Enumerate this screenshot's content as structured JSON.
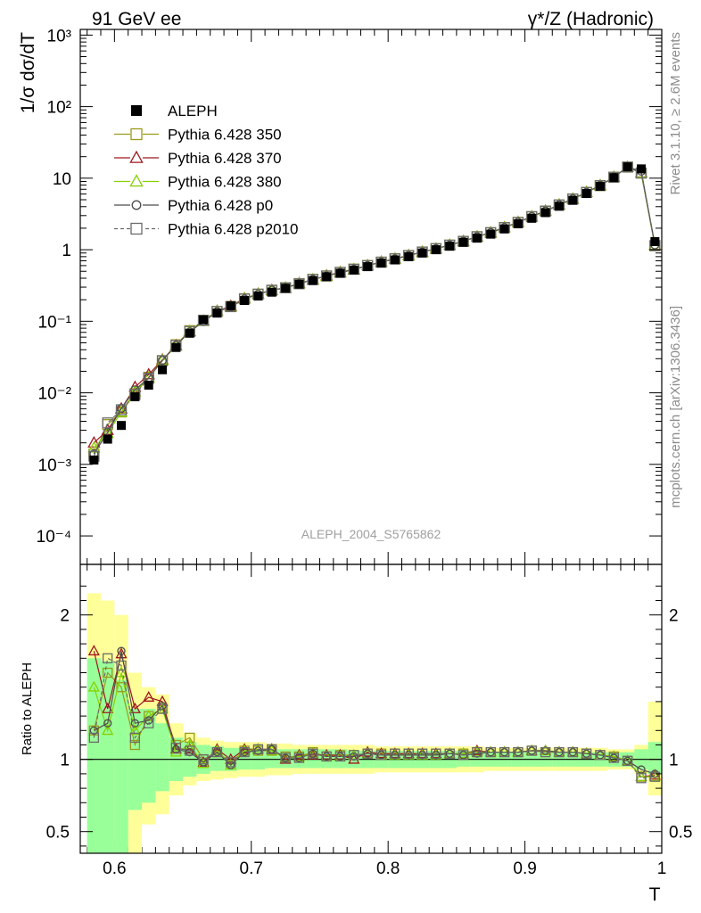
{
  "header": {
    "left": "91 GeV ee",
    "right": "γ*/Z (Hadronic)"
  },
  "side_text": {
    "rivet": "Rivet 3.1.10, ≥ 2.6M events",
    "mcplots": "mcplots.cern.ch [arXiv:1306.3436]"
  },
  "analysis_tag": "ALEPH_2004_S5765862",
  "colors": {
    "aleph": "#000000",
    "p350": "#9a9a1c",
    "p370": "#a0161e",
    "p380": "#86d000",
    "p0": "#4d4d4d",
    "p2010": "#6b6b6b",
    "band_inner": "#99ff99",
    "band_outer": "#ffff99"
  },
  "legend": [
    {
      "label": "ALEPH",
      "marker": "filled-square"
    },
    {
      "label": "Pythia 6.428 350",
      "marker": "open-square"
    },
    {
      "label": "Pythia 6.428 370",
      "marker": "open-triangle"
    },
    {
      "label": "Pythia 6.428 380",
      "marker": "open-triangle"
    },
    {
      "label": "Pythia 6.428 p0",
      "marker": "open-circle"
    },
    {
      "label": "Pythia 6.428 p2010",
      "marker": "open-square-dashed"
    }
  ],
  "chart_data": {
    "type": "line",
    "x": [
      0.585,
      0.595,
      0.605,
      0.615,
      0.625,
      0.635,
      0.645,
      0.655,
      0.665,
      0.675,
      0.685,
      0.695,
      0.705,
      0.715,
      0.725,
      0.735,
      0.745,
      0.755,
      0.765,
      0.775,
      0.785,
      0.795,
      0.805,
      0.815,
      0.825,
      0.835,
      0.845,
      0.855,
      0.865,
      0.875,
      0.885,
      0.895,
      0.905,
      0.915,
      0.925,
      0.935,
      0.945,
      0.955,
      0.965,
      0.975,
      0.985,
      0.995
    ],
    "xlabel": "T",
    "xlim": [
      0.575,
      1.0
    ],
    "xticks": [
      "0.6",
      "0.7",
      "0.8",
      "0.9",
      "1"
    ],
    "top_panel": {
      "ylabel": "1/σ  dσ/dT",
      "yscale": "log",
      "ylim": [
        4e-05,
        1200
      ],
      "yticks": [
        "10⁻⁴",
        "10⁻³",
        "10⁻²",
        "10⁻¹",
        "1",
        "10",
        "10²",
        "10³"
      ],
      "series": [
        {
          "name": "ALEPH",
          "values": [
            0.00115,
            0.00225,
            0.0035,
            0.0088,
            0.0128,
            0.021,
            0.043,
            0.068,
            0.105,
            0.13,
            0.165,
            0.195,
            0.225,
            0.255,
            0.29,
            0.33,
            0.37,
            0.42,
            0.47,
            0.52,
            0.58,
            0.65,
            0.72,
            0.8,
            0.9,
            1.0,
            1.12,
            1.27,
            1.45,
            1.65,
            1.95,
            2.3,
            2.75,
            3.3,
            4.05,
            4.9,
            6.1,
            7.7,
            10.2,
            14.4,
            13.5,
            1.3
          ]
        },
        {
          "name": "Pythia 6.428 350",
          "values": [
            0.0014,
            0.0036,
            0.0054,
            0.0097,
            0.0165,
            0.028,
            0.047,
            0.074,
            0.103,
            0.137,
            0.161,
            0.206,
            0.238,
            0.27,
            0.295,
            0.336,
            0.386,
            0.43,
            0.483,
            0.537,
            0.601,
            0.672,
            0.748,
            0.83,
            0.93,
            1.035,
            1.16,
            1.31,
            1.52,
            1.73,
            2.04,
            2.41,
            2.9,
            3.46,
            4.22,
            5.12,
            6.32,
            7.87,
            10.32,
            14.28,
            11.8,
            1.14
          ]
        },
        {
          "name": "Pythia 6.428 370",
          "values": [
            0.002,
            0.003,
            0.006,
            0.012,
            0.018,
            0.029,
            0.046,
            0.072,
            0.101,
            0.139,
            0.163,
            0.209,
            0.241,
            0.273,
            0.292,
            0.339,
            0.378,
            0.435,
            0.483,
            0.524,
            0.604,
            0.674,
            0.748,
            0.835,
            0.927,
            1.034,
            1.164,
            1.316,
            1.523,
            1.736,
            2.047,
            2.426,
            2.91,
            3.49,
            4.25,
            5.145,
            6.356,
            7.93,
            10.365,
            14.3,
            11.9,
            1.16
          ]
        },
        {
          "name": "Pythia 6.428 380",
          "values": [
            0.0017,
            0.0027,
            0.0054,
            0.0104,
            0.0163,
            0.0285,
            0.045,
            0.073,
            0.1,
            0.138,
            0.158,
            0.207,
            0.24,
            0.271,
            0.294,
            0.335,
            0.384,
            0.428,
            0.48,
            0.535,
            0.6,
            0.67,
            0.744,
            0.828,
            0.928,
            1.033,
            1.163,
            1.314,
            1.518,
            1.735,
            2.045,
            2.42,
            2.905,
            3.487,
            4.245,
            5.14,
            6.354,
            7.925,
            10.36,
            14.29,
            11.85,
            1.15
          ]
        },
        {
          "name": "Pythia 6.428 p0",
          "values": [
            0.0014,
            0.0028,
            0.0061,
            0.011,
            0.0162,
            0.0284,
            0.046,
            0.071,
            0.099,
            0.136,
            0.158,
            0.205,
            0.238,
            0.273,
            0.293,
            0.334,
            0.384,
            0.428,
            0.48,
            0.532,
            0.6,
            0.67,
            0.744,
            0.828,
            0.928,
            1.033,
            1.16,
            1.313,
            1.515,
            1.73,
            2.04,
            2.415,
            2.9,
            3.48,
            4.24,
            5.14,
            6.35,
            7.92,
            10.34,
            14.3,
            12.55,
            1.17
          ]
        },
        {
          "name": "Pythia 6.428 p2010",
          "values": [
            0.0013,
            0.0038,
            0.0058,
            0.0095,
            0.016,
            0.0282,
            0.046,
            0.072,
            0.103,
            0.137,
            0.16,
            0.205,
            0.24,
            0.272,
            0.294,
            0.334,
            0.385,
            0.43,
            0.482,
            0.534,
            0.6,
            0.67,
            0.746,
            0.83,
            0.93,
            1.035,
            1.16,
            1.31,
            1.52,
            1.732,
            2.04,
            2.41,
            2.9,
            3.47,
            4.23,
            5.125,
            6.33,
            7.89,
            10.32,
            14.3,
            11.8,
            1.14
          ]
        }
      ]
    },
    "ratio_panel": {
      "ylabel": "Ratio to ALEPH",
      "ylim": [
        0.35,
        2.35
      ],
      "yticks": [
        "0.5",
        "1",
        "2"
      ],
      "band_inner": [
        [
          0.35,
          1.7
        ],
        [
          0.35,
          1.68
        ],
        [
          0.35,
          1.55
        ],
        [
          0.65,
          1.35
        ],
        [
          0.7,
          1.35
        ],
        [
          0.78,
          1.25
        ],
        [
          0.85,
          1.15
        ],
        [
          0.88,
          1.12
        ],
        [
          0.9,
          1.1
        ],
        [
          0.92,
          1.09
        ],
        [
          0.92,
          1.08
        ],
        [
          0.93,
          1.08
        ],
        [
          0.93,
          1.07
        ],
        [
          0.94,
          1.07
        ],
        [
          0.94,
          1.07
        ],
        [
          0.94,
          1.07
        ],
        [
          0.94,
          1.07
        ],
        [
          0.94,
          1.07
        ],
        [
          0.94,
          1.07
        ],
        [
          0.94,
          1.06
        ],
        [
          0.94,
          1.06
        ],
        [
          0.94,
          1.06
        ],
        [
          0.94,
          1.06
        ],
        [
          0.94,
          1.06
        ],
        [
          0.94,
          1.06
        ],
        [
          0.94,
          1.06
        ],
        [
          0.94,
          1.06
        ],
        [
          0.95,
          1.06
        ],
        [
          0.95,
          1.06
        ],
        [
          0.95,
          1.05
        ],
        [
          0.95,
          1.05
        ],
        [
          0.95,
          1.05
        ],
        [
          0.95,
          1.05
        ],
        [
          0.95,
          1.05
        ],
        [
          0.95,
          1.05
        ],
        [
          0.95,
          1.05
        ],
        [
          0.95,
          1.05
        ],
        [
          0.95,
          1.05
        ],
        [
          0.95,
          1.05
        ],
        [
          0.95,
          1.05
        ],
        [
          0.93,
          1.07
        ],
        [
          0.9,
          1.12
        ]
      ],
      "band_outer": [
        [
          0.35,
          2.15
        ],
        [
          0.35,
          2.1
        ],
        [
          0.35,
          2.0
        ],
        [
          0.35,
          1.6
        ],
        [
          0.55,
          1.5
        ],
        [
          0.62,
          1.45
        ],
        [
          0.75,
          1.25
        ],
        [
          0.82,
          1.18
        ],
        [
          0.85,
          1.15
        ],
        [
          0.86,
          1.13
        ],
        [
          0.87,
          1.12
        ],
        [
          0.88,
          1.12
        ],
        [
          0.88,
          1.12
        ],
        [
          0.89,
          1.11
        ],
        [
          0.89,
          1.11
        ],
        [
          0.9,
          1.1
        ],
        [
          0.9,
          1.1
        ],
        [
          0.9,
          1.1
        ],
        [
          0.9,
          1.1
        ],
        [
          0.9,
          1.1
        ],
        [
          0.9,
          1.1
        ],
        [
          0.91,
          1.09
        ],
        [
          0.91,
          1.09
        ],
        [
          0.91,
          1.09
        ],
        [
          0.91,
          1.09
        ],
        [
          0.91,
          1.09
        ],
        [
          0.91,
          1.09
        ],
        [
          0.91,
          1.09
        ],
        [
          0.91,
          1.09
        ],
        [
          0.92,
          1.08
        ],
        [
          0.92,
          1.08
        ],
        [
          0.92,
          1.08
        ],
        [
          0.92,
          1.08
        ],
        [
          0.92,
          1.08
        ],
        [
          0.92,
          1.08
        ],
        [
          0.92,
          1.08
        ],
        [
          0.92,
          1.08
        ],
        [
          0.92,
          1.08
        ],
        [
          0.93,
          1.07
        ],
        [
          0.93,
          1.07
        ],
        [
          0.9,
          1.1
        ],
        [
          0.75,
          1.4
        ]
      ],
      "series": [
        {
          "name": "Pythia 6.428 350",
          "values": [
            1.2,
            1.6,
            1.5,
            1.1,
            1.3,
            1.35,
            1.1,
            1.15,
            1.0,
            1.05,
            0.98,
            1.06,
            1.06,
            1.06,
            1.02,
            1.02,
            1.05,
            1.02,
            1.03,
            1.03,
            1.04,
            1.04,
            1.04,
            1.04,
            1.04,
            1.04,
            1.04,
            1.04,
            1.05,
            1.05,
            1.05,
            1.05,
            1.06,
            1.05,
            1.05,
            1.05,
            1.04,
            1.03,
            1.02,
            0.99,
            0.88,
            0.88
          ]
        },
        {
          "name": "Pythia 6.428 370",
          "values": [
            1.75,
            1.35,
            1.73,
            1.35,
            1.43,
            1.4,
            1.07,
            1.07,
            0.98,
            1.07,
            1.0,
            1.07,
            1.07,
            1.07,
            1.0,
            1.03,
            1.03,
            1.03,
            1.03,
            1.0,
            1.05,
            1.04,
            1.04,
            1.04,
            1.04,
            1.04,
            1.04,
            1.04,
            1.06,
            1.05,
            1.05,
            1.05,
            1.06,
            1.06,
            1.05,
            1.05,
            1.04,
            1.03,
            1.02,
            0.99,
            0.88,
            0.89
          ]
        },
        {
          "name": "Pythia 6.428 380",
          "values": [
            1.5,
            1.2,
            1.6,
            1.2,
            1.3,
            1.35,
            1.05,
            1.1,
            0.97,
            1.06,
            0.96,
            1.06,
            1.07,
            1.06,
            1.01,
            1.02,
            1.04,
            1.02,
            1.02,
            1.03,
            1.04,
            1.03,
            1.03,
            1.03,
            1.03,
            1.03,
            1.04,
            1.04,
            1.05,
            1.05,
            1.05,
            1.05,
            1.06,
            1.06,
            1.05,
            1.05,
            1.04,
            1.03,
            1.02,
            0.99,
            0.88,
            0.88
          ]
        },
        {
          "name": "Pythia 6.428 p0",
          "values": [
            1.2,
            1.25,
            1.75,
            1.25,
            1.27,
            1.37,
            1.07,
            1.05,
            0.98,
            1.05,
            0.96,
            1.05,
            1.06,
            1.07,
            1.01,
            1.01,
            1.04,
            1.02,
            1.02,
            1.02,
            1.04,
            1.03,
            1.03,
            1.03,
            1.03,
            1.03,
            1.04,
            1.03,
            1.04,
            1.05,
            1.05,
            1.05,
            1.06,
            1.06,
            1.05,
            1.05,
            1.04,
            1.03,
            1.01,
            0.99,
            0.93,
            0.9
          ]
        },
        {
          "name": "Pythia 6.428 p2010",
          "values": [
            1.15,
            1.7,
            1.65,
            1.15,
            1.25,
            1.35,
            1.08,
            1.06,
            1.0,
            1.05,
            0.98,
            1.05,
            1.07,
            1.07,
            1.01,
            1.01,
            1.04,
            1.02,
            1.02,
            1.03,
            1.04,
            1.03,
            1.04,
            1.04,
            1.04,
            1.04,
            1.04,
            1.03,
            1.05,
            1.05,
            1.05,
            1.05,
            1.06,
            1.05,
            1.05,
            1.05,
            1.04,
            1.03,
            1.01,
            0.99,
            0.87,
            0.88
          ]
        }
      ]
    }
  }
}
